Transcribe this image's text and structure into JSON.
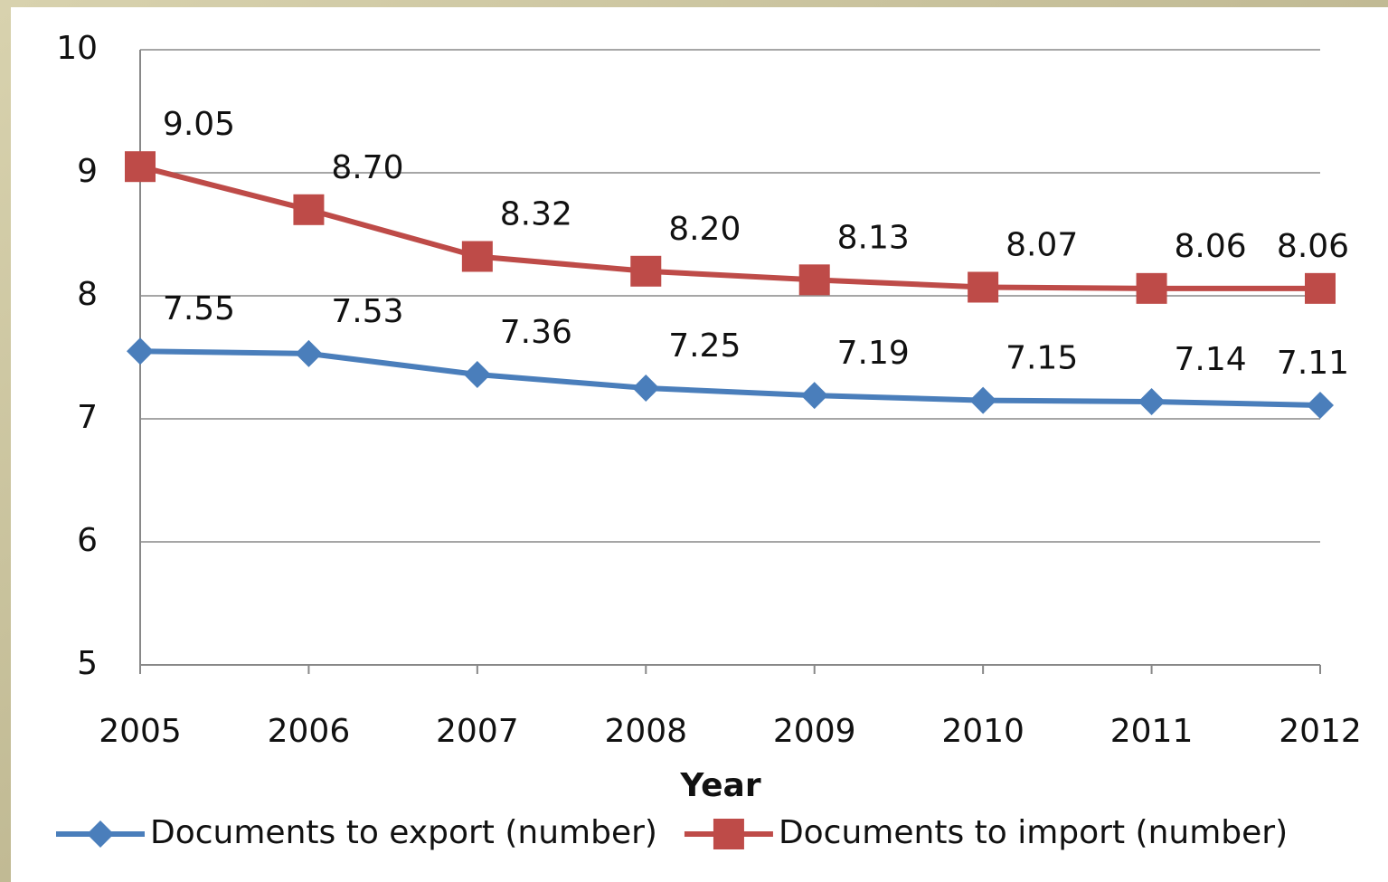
{
  "chart_data": {
    "type": "line",
    "x_label": "Year",
    "categories": [
      "2005",
      "2006",
      "2007",
      "2008",
      "2009",
      "2010",
      "2011",
      "2012"
    ],
    "series": [
      {
        "name": "Documents to export (number)",
        "color": "#4a7ebb",
        "marker": "diamond",
        "values": [
          7.55,
          7.53,
          7.36,
          7.25,
          7.19,
          7.15,
          7.14,
          7.11
        ],
        "value_labels": [
          "7.55",
          "7.53",
          "7.36",
          "7.25",
          "7.19",
          "7.15",
          "7.14",
          "7.11"
        ]
      },
      {
        "name": "Documents to import (number)",
        "color": "#be4b48",
        "marker": "square",
        "values": [
          9.05,
          8.7,
          8.32,
          8.2,
          8.13,
          8.07,
          8.06,
          8.06
        ],
        "value_labels": [
          "9.05",
          "8.70",
          "8.32",
          "8.20",
          "8.13",
          "8.07",
          "8.06",
          "8.06"
        ]
      }
    ],
    "ylim": [
      5,
      10
    ],
    "yticks": [
      5,
      6,
      7,
      8,
      9,
      10
    ],
    "grid": true,
    "legend": "bottom"
  }
}
